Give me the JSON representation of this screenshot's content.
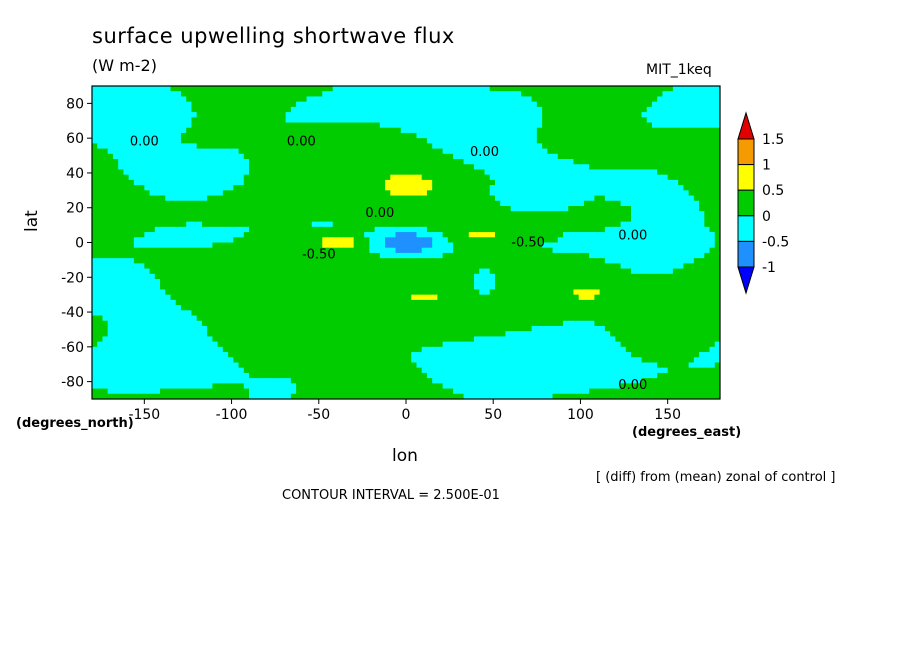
{
  "chart_data": {
    "type": "heatmap",
    "title": "surface upwelling shortwave flux",
    "units": "(W m-2)",
    "model": "MIT_1keq",
    "xlabel": "lon",
    "ylabel": "lat",
    "x_units": "(degrees_east)",
    "y_units": "(degrees_north)",
    "x_ticks": [
      -150,
      -100,
      -50,
      0,
      50,
      100,
      150
    ],
    "y_ticks": [
      80,
      60,
      40,
      20,
      0,
      -20,
      -40,
      -60,
      -80
    ],
    "xlim": [
      -180,
      180
    ],
    "ylim": [
      -90,
      90
    ],
    "note": "[ (diff) from (mean) zonal of control ]",
    "contour_interval_text": "CONTOUR INTERVAL = 2.500E-01",
    "contour_interval": 0.25,
    "colorbar": {
      "levels": [
        -1,
        -0.5,
        0,
        0.5,
        1,
        1.5
      ],
      "labels": [
        "1.5",
        "1",
        "0.5",
        "0",
        "-0.5",
        "-1"
      ],
      "colors": [
        "#e00000",
        "#f59a00",
        "#ffff00",
        "#00cc00",
        "#00ffff",
        "#1e90ff",
        "#0000ff"
      ]
    },
    "contour_labels": [
      {
        "text": "0.00",
        "lon": -150,
        "lat": 58
      },
      {
        "text": "0.00",
        "lon": -60,
        "lat": 58
      },
      {
        "text": "0.00",
        "lon": 45,
        "lat": 52
      },
      {
        "text": "0.00",
        "lon": -15,
        "lat": 17
      },
      {
        "text": "-0.50",
        "lon": -50,
        "lat": -7
      },
      {
        "text": "-0.50",
        "lon": 70,
        "lat": 0
      },
      {
        "text": "0.00",
        "lon": 130,
        "lat": 4
      },
      {
        "text": "0.00",
        "lon": 130,
        "lat": -82
      }
    ],
    "features": [
      {
        "name": "positive anomaly",
        "lon": 0,
        "lat": 33,
        "value": 0.5
      },
      {
        "name": "positive anomaly (orange core)",
        "lon": -40,
        "lat": 0,
        "value": 1.0
      },
      {
        "name": "negative anomaly (dense contours)",
        "lon": 0,
        "lat": 0,
        "value": -1.0
      },
      {
        "name": "positive anomaly",
        "lon": 10,
        "lat": -32,
        "value": 0.5
      },
      {
        "name": "positive anomaly",
        "lon": 105,
        "lat": -30,
        "value": 0.5
      },
      {
        "name": "negative anomaly",
        "lon": -130,
        "lat": 0,
        "value": -0.5
      },
      {
        "name": "negative anomaly",
        "lon": 65,
        "lat": 27,
        "value": -0.5
      },
      {
        "name": "negative anomaly",
        "lon": 135,
        "lat": 32,
        "value": -0.5
      }
    ]
  }
}
